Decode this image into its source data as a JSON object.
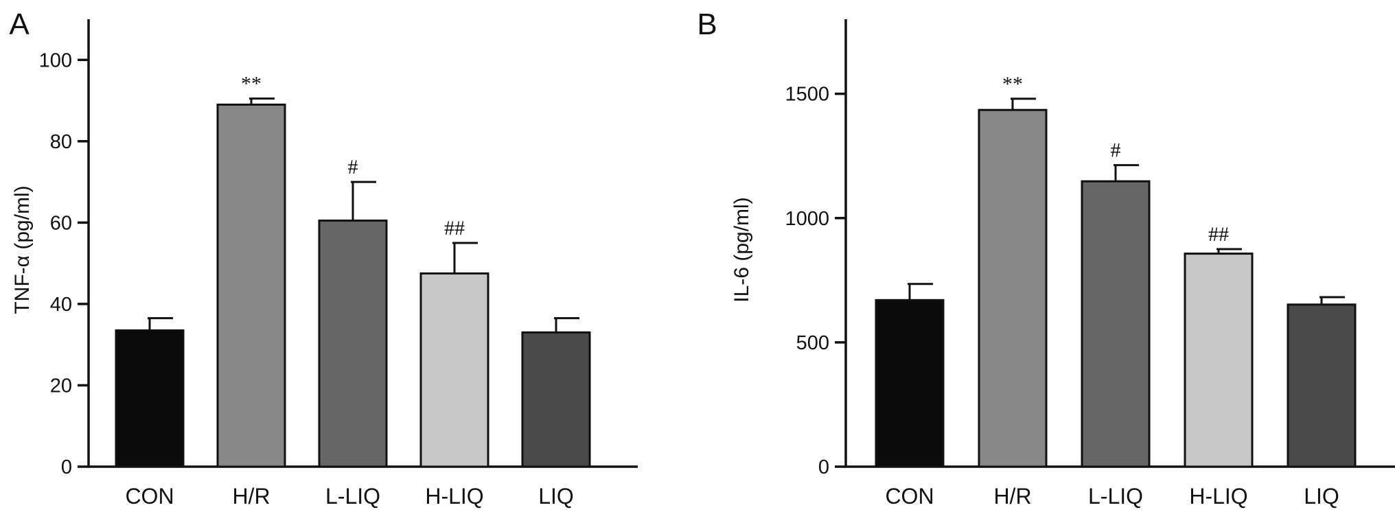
{
  "chart_data": [
    {
      "type": "bar",
      "panel_label": "A",
      "title": "",
      "ylabel": "TNF-α (pg/ml)",
      "xlabel": "",
      "ylim": [
        0,
        110
      ],
      "yticks": [
        0,
        20,
        40,
        60,
        80,
        100
      ],
      "categories": [
        "CON",
        "H/R",
        "L-LIQ",
        "H-LIQ",
        "LIQ"
      ],
      "values": [
        33.5,
        89,
        60.5,
        47.5,
        33
      ],
      "errors": [
        3,
        1.5,
        9.5,
        7.5,
        3.5
      ],
      "annotations": [
        "",
        "**",
        "#",
        "##",
        ""
      ],
      "colors": [
        "#0b0b0b",
        "#888888",
        "#666666",
        "#c8c8c8",
        "#4a4a4a"
      ],
      "grid": false
    },
    {
      "type": "bar",
      "panel_label": "B",
      "title": "",
      "ylabel": "IL-6 (pg/ml)",
      "xlabel": "",
      "ylim": [
        0,
        1800
      ],
      "yticks": [
        0,
        500,
        1000,
        1500
      ],
      "categories": [
        "CON",
        "H/R",
        "L-LIQ",
        "H-LIQ",
        "LIQ"
      ],
      "values": [
        670,
        1435,
        1148,
        857,
        652
      ],
      "errors": [
        65,
        45,
        65,
        18,
        30
      ],
      "annotations": [
        "",
        "**",
        "#",
        "##",
        ""
      ],
      "colors": [
        "#0b0b0b",
        "#888888",
        "#666666",
        "#c8c8c8",
        "#4a4a4a"
      ],
      "grid": false
    }
  ]
}
